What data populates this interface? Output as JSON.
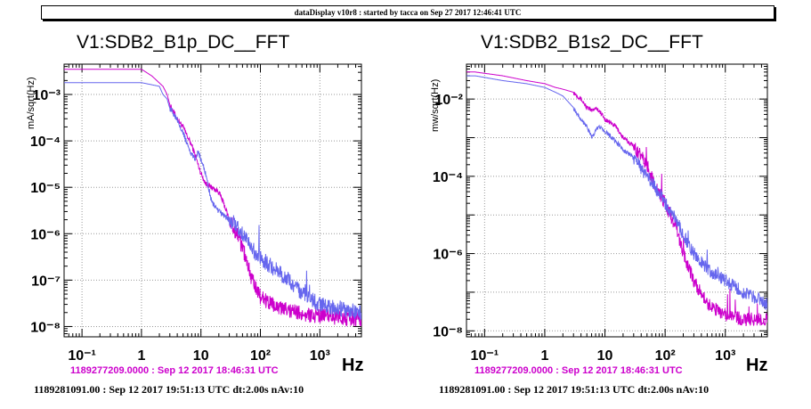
{
  "banner": "dataDisplay v10r8 : started by tacca on Sep 27 2017 12:46:41 UTC",
  "colors": {
    "reference": "#cc00cc",
    "current": "#6666ee"
  },
  "chart_data": [
    {
      "type": "line",
      "title": "V1:SDB2_B1p_DC__FFT",
      "ylabel": "mA/sqrt(Hz)",
      "xlabel": "Hz",
      "xscale": "log",
      "yscale": "log",
      "xlim": [
        0.05,
        5000
      ],
      "ylim": [
        6e-09,
        0.0045
      ],
      "grid": true,
      "x_ticks": [
        "10⁻¹",
        "1",
        "10",
        "10²",
        "10³"
      ],
      "y_ticks": [
        "10⁻⁸",
        "10⁻⁷",
        "10⁻⁶",
        "10⁻⁵",
        "10⁻⁴",
        "10⁻³"
      ],
      "timestamp_reference": "1189277209.0000 : Sep 12 2017 18:46:31 UTC",
      "timestamp_current": "1189281091.00 : Sep 12 2017 19:51:13 UTC dt:2.00s nAv:10",
      "series": [
        {
          "color": "#cc00cc",
          "x": [
            0.05,
            1,
            1.5,
            2.3,
            2.7,
            3,
            4,
            5,
            6,
            7,
            8,
            9,
            10,
            12,
            15,
            20,
            25,
            30,
            40,
            50,
            60,
            70,
            80,
            100,
            150,
            200,
            300,
            500,
            1000,
            2000,
            3000,
            5000
          ],
          "y": [
            0.0035,
            0.0035,
            0.0025,
            0.0015,
            0.001,
            0.0006,
            0.0003,
            0.0002,
            0.00012,
            8e-05,
            5e-05,
            3e-05,
            2e-05,
            1.2e-05,
            1e-05,
            8e-06,
            4e-06,
            2e-06,
            1e-06,
            5e-07,
            2.5e-07,
            1.2e-07,
            7e-08,
            4.5e-08,
            3e-08,
            2.5e-08,
            2.2e-08,
            1.9e-08,
            1.7e-08,
            1.6e-08,
            1.55e-08,
            1.5e-08
          ]
        },
        {
          "color": "#6666ee",
          "x": [
            0.05,
            1,
            2,
            2.3,
            2.7,
            3,
            4,
            5,
            6,
            7,
            8,
            9,
            10,
            12,
            15,
            20,
            30,
            40,
            50,
            70,
            100,
            150,
            200,
            300,
            500,
            1000,
            2000,
            5000
          ],
          "y": [
            0.0018,
            0.0018,
            0.0015,
            0.001,
            0.0008,
            0.0005,
            0.0003,
            0.00015,
            8e-05,
            5e-05,
            4e-05,
            6e-05,
            4e-05,
            2e-05,
            5e-06,
            3e-06,
            2e-06,
            1.5e-06,
            1e-06,
            5e-07,
            3e-07,
            2e-07,
            1.5e-07,
            1e-07,
            5e-08,
            3e-08,
            2.5e-08,
            2e-08
          ]
        }
      ]
    },
    {
      "type": "line",
      "title": "V1:SDB2_B1s2_DC__FFT",
      "ylabel": "mw/sqrt(Hz)",
      "xlabel": "Hz",
      "xscale": "log",
      "yscale": "log",
      "xlim": [
        0.05,
        5000
      ],
      "ylim": [
        7e-09,
        0.08
      ],
      "grid": true,
      "x_ticks": [
        "10⁻¹",
        "1",
        "10",
        "10²",
        "10³"
      ],
      "y_ticks": [
        "10⁻⁸",
        "10⁻⁶",
        "10⁻⁴",
        "10⁻²"
      ],
      "timestamp_reference": "1189277209.0000 : Sep 12 2017 18:46:31 UTC",
      "timestamp_current": "1189281091.00 : Sep 12 2017 19:51:13 UTC dt:2.00s nAv:10",
      "series": [
        {
          "color": "#cc00cc",
          "x": [
            0.05,
            0.07,
            0.2,
            0.5,
            1,
            1.5,
            2,
            3,
            4,
            5,
            6,
            7,
            8,
            10,
            15,
            20,
            30,
            50,
            70,
            100,
            150,
            200,
            300,
            500,
            1000,
            2000,
            5000
          ],
          "y": [
            0.05,
            0.05,
            0.04,
            0.03,
            0.025,
            0.02,
            0.018,
            0.015,
            0.01,
            0.006,
            0.005,
            0.006,
            0.005,
            0.003,
            0.002,
            0.001,
            0.0006,
            0.0002,
            5e-05,
            2e-05,
            5e-06,
            1e-06,
            2e-07,
            5e-08,
            2.5e-08,
            2e-08,
            2e-08
          ]
        },
        {
          "color": "#6666ee",
          "x": [
            0.05,
            0.07,
            0.2,
            0.5,
            1,
            1.5,
            2,
            3,
            4,
            5,
            6,
            7,
            8,
            10,
            15,
            20,
            30,
            50,
            70,
            100,
            150,
            200,
            300,
            500,
            1000,
            2000,
            5000
          ],
          "y": [
            0.04,
            0.04,
            0.03,
            0.025,
            0.02,
            0.015,
            0.012,
            0.006,
            0.003,
            0.002,
            0.001,
            0.0015,
            0.002,
            0.0015,
            0.0008,
            0.0005,
            0.0003,
            0.0001,
            5e-05,
            2e-05,
            8e-06,
            3e-06,
            1e-06,
            4e-07,
            2e-07,
            1e-07,
            5e-08
          ]
        }
      ]
    }
  ]
}
